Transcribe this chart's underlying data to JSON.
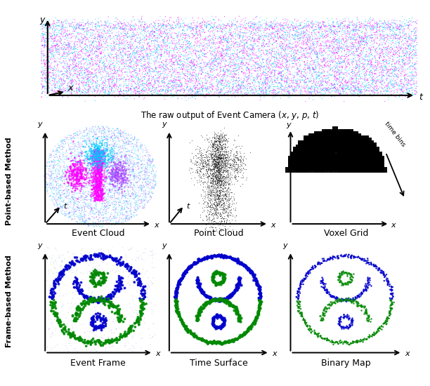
{
  "title_top": "The raw output of Event Camera ($x$, $y$, $p$, $t$)",
  "label_event_cloud": "Event Cloud",
  "label_point_cloud": "Point Cloud",
  "label_voxel_grid": "Voxel Grid",
  "label_event_frame": "Event Frame",
  "label_time_surface": "Time Surface",
  "label_binary_map": "Binary Map",
  "label_point_based": "Point-based Method",
  "label_frame_based": "Frame-based Method",
  "color_cyan": "#00CCFF",
  "color_magenta": "#FF00FF",
  "color_blue": "#0000CC",
  "color_green": "#008800",
  "bg_color": "#FFFFFF",
  "seed": 42
}
